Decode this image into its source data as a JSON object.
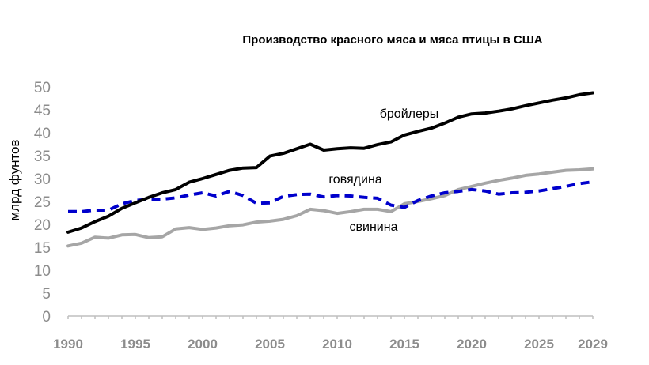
{
  "chart_data": {
    "type": "line",
    "title": "Производство красного мяса и мяса птицы в США",
    "ylabel": "млрд фунтов",
    "xlabel": "",
    "ylim": [
      0,
      50
    ],
    "xlim": [
      1990,
      2029
    ],
    "yticks": [
      "0",
      "5",
      "10",
      "15",
      "20",
      "25",
      "30",
      "35",
      "40",
      "45",
      "50"
    ],
    "xticks": [
      "1990",
      "1995",
      "2000",
      "2005",
      "2010",
      "2015",
      "2020",
      "2025",
      "2029"
    ],
    "grid": false,
    "legend": "inline labels",
    "x": [
      1990,
      1991,
      1992,
      1993,
      1994,
      1995,
      1996,
      1997,
      1998,
      1999,
      2000,
      2001,
      2002,
      2003,
      2004,
      2005,
      2006,
      2007,
      2008,
      2009,
      2010,
      2011,
      2012,
      2013,
      2014,
      2015,
      2016,
      2017,
      2018,
      2019,
      2020,
      2021,
      2022,
      2023,
      2024,
      2025,
      2026,
      2027,
      2028,
      2029
    ],
    "series": [
      {
        "name": "бройлеры",
        "color": "#000000",
        "style": "solid",
        "values": [
          18.3,
          19.2,
          20.6,
          21.8,
          23.5,
          24.7,
          25.9,
          26.9,
          27.6,
          29.2,
          30.0,
          30.9,
          31.8,
          32.3,
          32.4,
          34.9,
          35.5,
          36.5,
          37.5,
          36.2,
          36.5,
          36.7,
          36.6,
          37.4,
          38.0,
          39.5,
          40.3,
          41.0,
          42.1,
          43.4,
          44.1,
          44.3,
          44.7,
          45.2,
          45.9,
          46.5,
          47.1,
          47.6,
          48.3,
          48.7
        ]
      },
      {
        "name": "говядина",
        "color": "#0000cc",
        "style": "dashed",
        "values": [
          22.8,
          22.8,
          23.1,
          23.1,
          24.5,
          25.2,
          25.5,
          25.5,
          25.8,
          26.4,
          26.9,
          26.2,
          27.2,
          26.3,
          24.6,
          24.7,
          26.1,
          26.5,
          26.6,
          26.0,
          26.3,
          26.2,
          25.9,
          25.7,
          24.2,
          23.7,
          25.2,
          26.2,
          26.9,
          27.2,
          27.6,
          27.3,
          26.6,
          26.9,
          27.0,
          27.3,
          27.8,
          28.3,
          28.9,
          29.3
        ]
      },
      {
        "name": "свинина",
        "color": "#a6a6a6",
        "style": "solid",
        "values": [
          15.3,
          15.9,
          17.2,
          17.0,
          17.7,
          17.8,
          17.1,
          17.3,
          19.0,
          19.3,
          18.9,
          19.2,
          19.7,
          19.9,
          20.5,
          20.7,
          21.1,
          21.9,
          23.3,
          23.0,
          22.4,
          22.8,
          23.3,
          23.3,
          22.8,
          24.5,
          25.0,
          25.6,
          26.3,
          27.6,
          28.3,
          29.0,
          29.6,
          30.1,
          30.7,
          31.0,
          31.4,
          31.8,
          31.9,
          32.1
        ]
      }
    ],
    "annotations": {
      "broilers": "бройлеры",
      "beef": "говядина",
      "pork": "свинина"
    }
  }
}
